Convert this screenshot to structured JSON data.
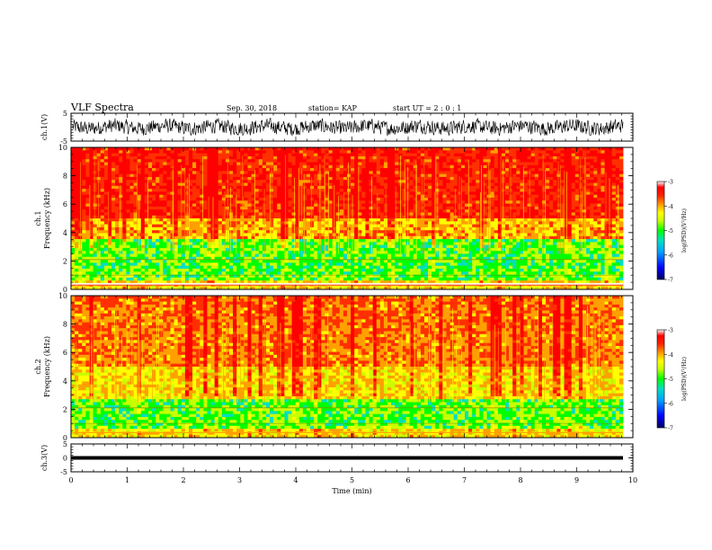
{
  "header": {
    "title": "VLF Spectra",
    "date": "Sep. 30, 2018",
    "station": "station= KAP",
    "start": "start UT =  2 : 0 : 1"
  },
  "chart_data": [
    {
      "type": "line",
      "name": "ch1-waveform",
      "ylabel": "ch.1(V)",
      "ylim": [
        -5,
        5
      ],
      "yticks": [
        "5",
        "-5"
      ],
      "xlim": [
        0,
        10
      ],
      "description_values": "noisy waveform, amplitude about +/-3 V"
    },
    {
      "type": "heatmap",
      "name": "ch1-spectrogram",
      "ylabel": "ch.1\nFrequency (kHz)",
      "ylim": [
        0,
        10
      ],
      "yticks": [
        "0",
        "2",
        "4",
        "6",
        "8",
        "10"
      ],
      "xlim": [
        0,
        9.8
      ],
      "colorbar": {
        "label": "log(PSD)(V²/Hz)",
        "range": [
          -7,
          -3
        ],
        "ticks": [
          "-3",
          "-4",
          "-5",
          "-6",
          "-7"
        ]
      }
    },
    {
      "type": "heatmap",
      "name": "ch2-spectrogram",
      "ylabel": "ch.2\nFrequency (kHz)",
      "ylim": [
        0,
        10
      ],
      "yticks": [
        "0",
        "2",
        "4",
        "6",
        "8",
        "10"
      ],
      "xlim": [
        0,
        9.8
      ],
      "colorbar": {
        "label": "log(PSD)(V²/Hz)",
        "range": [
          -7,
          -3
        ],
        "ticks": [
          "-3",
          "-4",
          "-5",
          "-6",
          "-7"
        ]
      }
    },
    {
      "type": "line",
      "name": "ch3-waveform",
      "ylabel": "ch.3(V)",
      "ylim": [
        -5,
        5
      ],
      "yticks": [
        "5",
        "0",
        "-5"
      ],
      "xlim": [
        0,
        10
      ],
      "constant_value": 0
    }
  ],
  "xaxis": {
    "label": "Time (min)",
    "ticks": [
      "0",
      "1",
      "2",
      "3",
      "4",
      "5",
      "6",
      "7",
      "8",
      "9",
      "10"
    ]
  },
  "colors": {
    "scale": [
      "#000060",
      "#0000ff",
      "#00a0ff",
      "#00e0c0",
      "#00ff00",
      "#c8ff00",
      "#ffff00",
      "#ffa000",
      "#ff3000",
      "#ff0000",
      "#ffffff"
    ]
  }
}
